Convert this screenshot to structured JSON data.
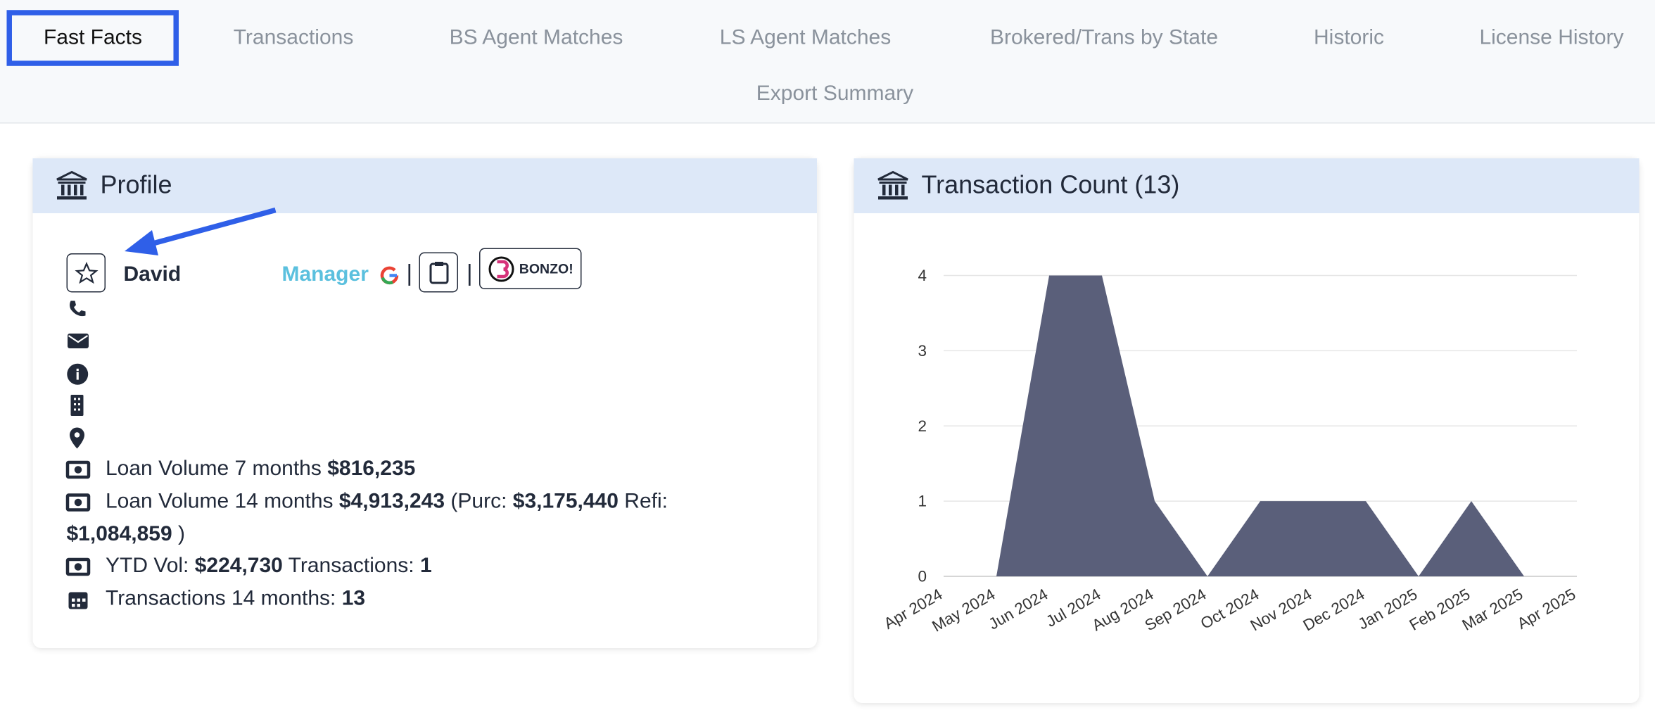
{
  "tabs": [
    "Fast Facts",
    "Transactions",
    "BS Agent Matches",
    "LS Agent Matches",
    "Brokered/Trans by State",
    "Historic",
    "License History",
    "Export Summary"
  ],
  "profile": {
    "title": "Profile",
    "name": "David",
    "role": "Manager",
    "badge": "BONZO!",
    "stats": [
      [
        "Loan Volume 7 months",
        "$816,235"
      ],
      [
        "Loan Volume 14 months",
        "$4,913,243",
        "(Purc:",
        "$3,175,440",
        "Refi:",
        "$1,084,859",
        ")"
      ],
      [
        "YTD Vol:",
        "$224,730",
        "Transactions:",
        "1"
      ],
      [
        "Transactions 14 months:",
        "13"
      ]
    ]
  },
  "chart_data": {
    "type": "area",
    "title": "Transaction Count (13)",
    "categories": [
      "Apr 2024",
      "May 2024",
      "Jun 2024",
      "Jul 2024",
      "Aug 2024",
      "Sep 2024",
      "Oct 2024",
      "Nov 2024",
      "Dec 2024",
      "Jan 2025",
      "Feb 2025",
      "Mar 2025",
      "Apr 2025"
    ],
    "values": [
      null,
      0,
      4,
      4,
      1,
      0,
      1,
      1,
      1,
      0,
      1,
      0,
      null
    ],
    "color": "#5a5f7a",
    "ylim": [
      0,
      4
    ],
    "yticks": [
      0,
      1,
      2,
      3,
      4
    ],
    "grid": true
  }
}
